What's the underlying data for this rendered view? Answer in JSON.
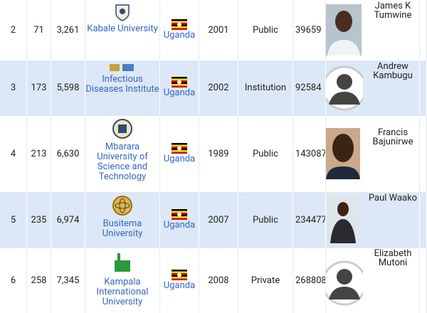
{
  "table": {
    "rows": [
      [
        "2",
        "71",
        "3,261",
        "Kabale University",
        "Uganda",
        "2001",
        "Public",
        "39659",
        "James K Tumwine"
      ],
      [
        "3",
        "173",
        "5,598",
        "Infectious Diseases Institute",
        "Uganda",
        "2002",
        "Institution",
        "92584",
        "Andrew Kambugu"
      ],
      [
        "4",
        "213",
        "6,630",
        "Mbarara University of Science and Technology",
        "Uganda",
        "1989",
        "Public",
        "143087",
        "Francis Bajunirwe"
      ],
      [
        "5",
        "235",
        "6,974",
        "Busitema University",
        "Uganda",
        "2007",
        "Public",
        "234477",
        "Paul Waako"
      ],
      [
        "6",
        "258",
        "7,345",
        "Kampala International University",
        "Uganda",
        "2008",
        "Private",
        "268808",
        "Elizabeth Mutoni"
      ]
    ]
  }
}
